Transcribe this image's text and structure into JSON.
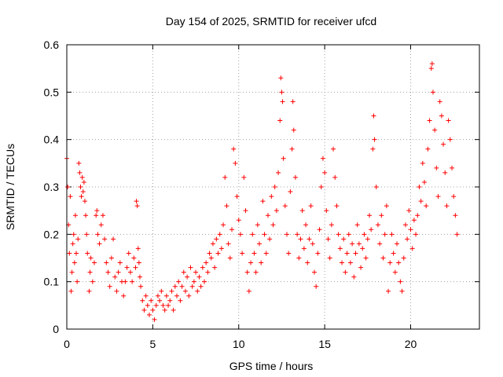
{
  "chart_data": {
    "type": "scatter",
    "title": "Day 154 of 2025, SRMTID for receiver ufcd",
    "xlabel": "GPS time / hours",
    "ylabel": "SRMTID / TECUs",
    "xlim": [
      0,
      24
    ],
    "ylim": [
      0,
      0.6
    ],
    "xticks": [
      0,
      5,
      10,
      15,
      20
    ],
    "xtick_labels": [
      "0",
      "5",
      "10",
      "15",
      "20"
    ],
    "yticks": [
      0,
      0.1,
      0.2,
      0.3,
      0.4,
      0.5,
      0.6
    ],
    "ytick_labels": [
      "0",
      "0.1",
      "0.2",
      "0.3",
      "0.4",
      "0.5",
      "0.6"
    ],
    "grid": true,
    "marker": "+",
    "color": "#ff0000",
    "series": [
      {
        "name": "SRMTID",
        "points": [
          [
            0.0,
            0.36
          ],
          [
            0.05,
            0.3
          ],
          [
            0.1,
            0.22
          ],
          [
            0.15,
            0.16
          ],
          [
            0.2,
            0.28
          ],
          [
            0.25,
            0.08
          ],
          [
            0.3,
            0.12
          ],
          [
            0.35,
            0.18
          ],
          [
            0.4,
            0.2
          ],
          [
            0.45,
            0.14
          ],
          [
            0.5,
            0.24
          ],
          [
            0.55,
            0.16
          ],
          [
            0.6,
            0.1
          ],
          [
            0.65,
            0.19
          ],
          [
            0.7,
            0.35
          ],
          [
            0.75,
            0.33
          ],
          [
            0.8,
            0.3
          ],
          [
            0.85,
            0.28
          ],
          [
            0.9,
            0.32
          ],
          [
            0.95,
            0.29
          ],
          [
            1.0,
            0.31
          ],
          [
            1.05,
            0.27
          ],
          [
            1.1,
            0.24
          ],
          [
            1.15,
            0.2
          ],
          [
            1.2,
            0.16
          ],
          [
            1.3,
            0.08
          ],
          [
            1.35,
            0.12
          ],
          [
            1.4,
            0.15
          ],
          [
            1.5,
            0.1
          ],
          [
            1.6,
            0.14
          ],
          [
            1.7,
            0.24
          ],
          [
            1.75,
            0.25
          ],
          [
            1.8,
            0.2
          ],
          [
            1.9,
            0.18
          ],
          [
            2.0,
            0.22
          ],
          [
            2.1,
            0.24
          ],
          [
            2.2,
            0.19
          ],
          [
            2.3,
            0.14
          ],
          [
            2.4,
            0.12
          ],
          [
            2.5,
            0.09
          ],
          [
            2.6,
            0.15
          ],
          [
            2.7,
            0.19
          ],
          [
            2.8,
            0.11
          ],
          [
            2.9,
            0.08
          ],
          [
            3.0,
            0.12
          ],
          [
            3.1,
            0.14
          ],
          [
            3.2,
            0.1
          ],
          [
            3.3,
            0.07
          ],
          [
            3.4,
            0.1
          ],
          [
            3.5,
            0.13
          ],
          [
            3.6,
            0.16
          ],
          [
            3.7,
            0.12
          ],
          [
            3.8,
            0.1
          ],
          [
            3.9,
            0.15
          ],
          [
            4.0,
            0.13
          ],
          [
            4.05,
            0.27
          ],
          [
            4.1,
            0.26
          ],
          [
            4.15,
            0.17
          ],
          [
            4.2,
            0.14
          ],
          [
            4.25,
            0.11
          ],
          [
            4.3,
            0.09
          ],
          [
            4.4,
            0.06
          ],
          [
            4.5,
            0.04
          ],
          [
            4.6,
            0.07
          ],
          [
            4.7,
            0.05
          ],
          [
            4.8,
            0.03
          ],
          [
            4.9,
            0.06
          ],
          [
            5.0,
            0.04
          ],
          [
            5.1,
            0.02
          ],
          [
            5.2,
            0.05
          ],
          [
            5.3,
            0.07
          ],
          [
            5.4,
            0.06
          ],
          [
            5.5,
            0.08
          ],
          [
            5.6,
            0.05
          ],
          [
            5.7,
            0.04
          ],
          [
            5.8,
            0.07
          ],
          [
            5.9,
            0.05
          ],
          [
            6.0,
            0.06
          ],
          [
            6.1,
            0.08
          ],
          [
            6.2,
            0.04
          ],
          [
            6.3,
            0.09
          ],
          [
            6.4,
            0.07
          ],
          [
            6.5,
            0.1
          ],
          [
            6.6,
            0.06
          ],
          [
            6.7,
            0.09
          ],
          [
            6.8,
            0.12
          ],
          [
            6.9,
            0.08
          ],
          [
            7.0,
            0.11
          ],
          [
            7.1,
            0.07
          ],
          [
            7.2,
            0.13
          ],
          [
            7.3,
            0.09
          ],
          [
            7.4,
            0.1
          ],
          [
            7.5,
            0.12
          ],
          [
            7.6,
            0.08
          ],
          [
            7.7,
            0.11
          ],
          [
            7.8,
            0.09
          ],
          [
            7.9,
            0.13
          ],
          [
            8.0,
            0.1
          ],
          [
            8.1,
            0.14
          ],
          [
            8.2,
            0.12
          ],
          [
            8.3,
            0.16
          ],
          [
            8.4,
            0.15
          ],
          [
            8.5,
            0.18
          ],
          [
            8.6,
            0.13
          ],
          [
            8.7,
            0.19
          ],
          [
            8.8,
            0.16
          ],
          [
            8.9,
            0.2
          ],
          [
            9.0,
            0.17
          ],
          [
            9.1,
            0.22
          ],
          [
            9.2,
            0.32
          ],
          [
            9.3,
            0.26
          ],
          [
            9.4,
            0.18
          ],
          [
            9.5,
            0.15
          ],
          [
            9.6,
            0.21
          ],
          [
            9.7,
            0.38
          ],
          [
            9.8,
            0.35
          ],
          [
            9.9,
            0.28
          ],
          [
            10.0,
            0.23
          ],
          [
            10.1,
            0.2
          ],
          [
            10.2,
            0.16
          ],
          [
            10.3,
            0.32
          ],
          [
            10.4,
            0.25
          ],
          [
            10.5,
            0.12
          ],
          [
            10.6,
            0.08
          ],
          [
            10.7,
            0.14
          ],
          [
            10.8,
            0.2
          ],
          [
            10.9,
            0.16
          ],
          [
            11.0,
            0.12
          ],
          [
            11.1,
            0.22
          ],
          [
            11.2,
            0.18
          ],
          [
            11.3,
            0.14
          ],
          [
            11.4,
            0.27
          ],
          [
            11.5,
            0.2
          ],
          [
            11.6,
            0.16
          ],
          [
            11.7,
            0.24
          ],
          [
            11.8,
            0.19
          ],
          [
            11.9,
            0.28
          ],
          [
            12.0,
            0.22
          ],
          [
            12.1,
            0.3
          ],
          [
            12.2,
            0.25
          ],
          [
            12.3,
            0.33
          ],
          [
            12.4,
            0.44
          ],
          [
            12.45,
            0.53
          ],
          [
            12.5,
            0.5
          ],
          [
            12.55,
            0.48
          ],
          [
            12.6,
            0.36
          ],
          [
            12.7,
            0.26
          ],
          [
            12.8,
            0.2
          ],
          [
            12.9,
            0.16
          ],
          [
            13.0,
            0.29
          ],
          [
            13.1,
            0.38
          ],
          [
            13.15,
            0.48
          ],
          [
            13.2,
            0.42
          ],
          [
            13.3,
            0.32
          ],
          [
            13.4,
            0.2
          ],
          [
            13.5,
            0.15
          ],
          [
            13.6,
            0.19
          ],
          [
            13.7,
            0.25
          ],
          [
            13.8,
            0.17
          ],
          [
            13.9,
            0.22
          ],
          [
            14.0,
            0.14
          ],
          [
            14.1,
            0.19
          ],
          [
            14.2,
            0.26
          ],
          [
            14.3,
            0.18
          ],
          [
            14.4,
            0.12
          ],
          [
            14.5,
            0.09
          ],
          [
            14.6,
            0.16
          ],
          [
            14.7,
            0.21
          ],
          [
            14.8,
            0.3
          ],
          [
            14.9,
            0.36
          ],
          [
            15.0,
            0.33
          ],
          [
            15.1,
            0.25
          ],
          [
            15.2,
            0.19
          ],
          [
            15.3,
            0.15
          ],
          [
            15.4,
            0.22
          ],
          [
            15.5,
            0.38
          ],
          [
            15.6,
            0.32
          ],
          [
            15.7,
            0.26
          ],
          [
            15.8,
            0.2
          ],
          [
            15.9,
            0.17
          ],
          [
            16.0,
            0.14
          ],
          [
            16.1,
            0.19
          ],
          [
            16.2,
            0.12
          ],
          [
            16.3,
            0.16
          ],
          [
            16.4,
            0.2
          ],
          [
            16.5,
            0.14
          ],
          [
            16.6,
            0.18
          ],
          [
            16.7,
            0.11
          ],
          [
            16.8,
            0.16
          ],
          [
            16.9,
            0.22
          ],
          [
            17.0,
            0.18
          ],
          [
            17.1,
            0.13
          ],
          [
            17.2,
            0.17
          ],
          [
            17.3,
            0.2
          ],
          [
            17.4,
            0.15
          ],
          [
            17.5,
            0.19
          ],
          [
            17.6,
            0.24
          ],
          [
            17.7,
            0.21
          ],
          [
            17.8,
            0.38
          ],
          [
            17.85,
            0.45
          ],
          [
            17.9,
            0.4
          ],
          [
            18.0,
            0.3
          ],
          [
            18.1,
            0.22
          ],
          [
            18.2,
            0.18
          ],
          [
            18.3,
            0.24
          ],
          [
            18.4,
            0.15
          ],
          [
            18.5,
            0.2
          ],
          [
            18.6,
            0.26
          ],
          [
            18.7,
            0.08
          ],
          [
            18.8,
            0.14
          ],
          [
            18.9,
            0.2
          ],
          [
            19.0,
            0.16
          ],
          [
            19.1,
            0.12
          ],
          [
            19.2,
            0.18
          ],
          [
            19.3,
            0.14
          ],
          [
            19.4,
            0.1
          ],
          [
            19.5,
            0.08
          ],
          [
            19.6,
            0.15
          ],
          [
            19.7,
            0.22
          ],
          [
            19.8,
            0.19
          ],
          [
            19.9,
            0.25
          ],
          [
            20.0,
            0.21
          ],
          [
            20.1,
            0.17
          ],
          [
            20.2,
            0.23
          ],
          [
            20.3,
            0.2
          ],
          [
            20.4,
            0.24
          ],
          [
            20.5,
            0.3
          ],
          [
            20.6,
            0.27
          ],
          [
            20.7,
            0.35
          ],
          [
            20.8,
            0.31
          ],
          [
            20.9,
            0.26
          ],
          [
            21.0,
            0.38
          ],
          [
            21.1,
            0.44
          ],
          [
            21.2,
            0.55
          ],
          [
            21.25,
            0.56
          ],
          [
            21.3,
            0.5
          ],
          [
            21.4,
            0.42
          ],
          [
            21.5,
            0.34
          ],
          [
            21.6,
            0.28
          ],
          [
            21.7,
            0.48
          ],
          [
            21.8,
            0.45
          ],
          [
            21.9,
            0.39
          ],
          [
            22.0,
            0.33
          ],
          [
            22.1,
            0.26
          ],
          [
            22.2,
            0.44
          ],
          [
            22.3,
            0.4
          ],
          [
            22.4,
            0.34
          ],
          [
            22.5,
            0.28
          ],
          [
            22.6,
            0.24
          ],
          [
            22.7,
            0.2
          ]
        ]
      }
    ]
  }
}
